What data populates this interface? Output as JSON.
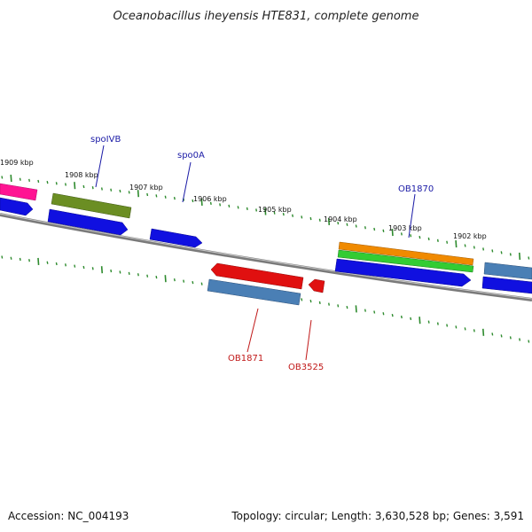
{
  "title": "Oceanobacillus iheyensis HTE831, complete genome",
  "footer": {
    "accession": "Accession: NC_004193",
    "summary": "Topology: circular; Length: 3,630,528 bp; Genes: 3,591"
  },
  "ticks": [
    "1909 kbp",
    "1908 kbp",
    "1907 kbp",
    "1906 kbp",
    "1905 kbp",
    "1904 kbp",
    "1903 kbp",
    "1902 kbp"
  ],
  "genes_forward": [
    "spoIVB",
    "spo0A",
    "OB1870"
  ],
  "genes_reverse": [
    "OB1871",
    "OB3525"
  ],
  "colors": {
    "backbone": "#7a7a7a",
    "tick_marks": "#2e8b2e",
    "forward_label": "#1a1aa6",
    "reverse_label": "#c01818",
    "cds_blue": "#1010e0",
    "steel_blue": "#4a7fb5",
    "red": "#e01010",
    "olive": "#6b8e23",
    "orange": "#f08a00",
    "green": "#33cc33",
    "magenta": "#ff1493"
  }
}
